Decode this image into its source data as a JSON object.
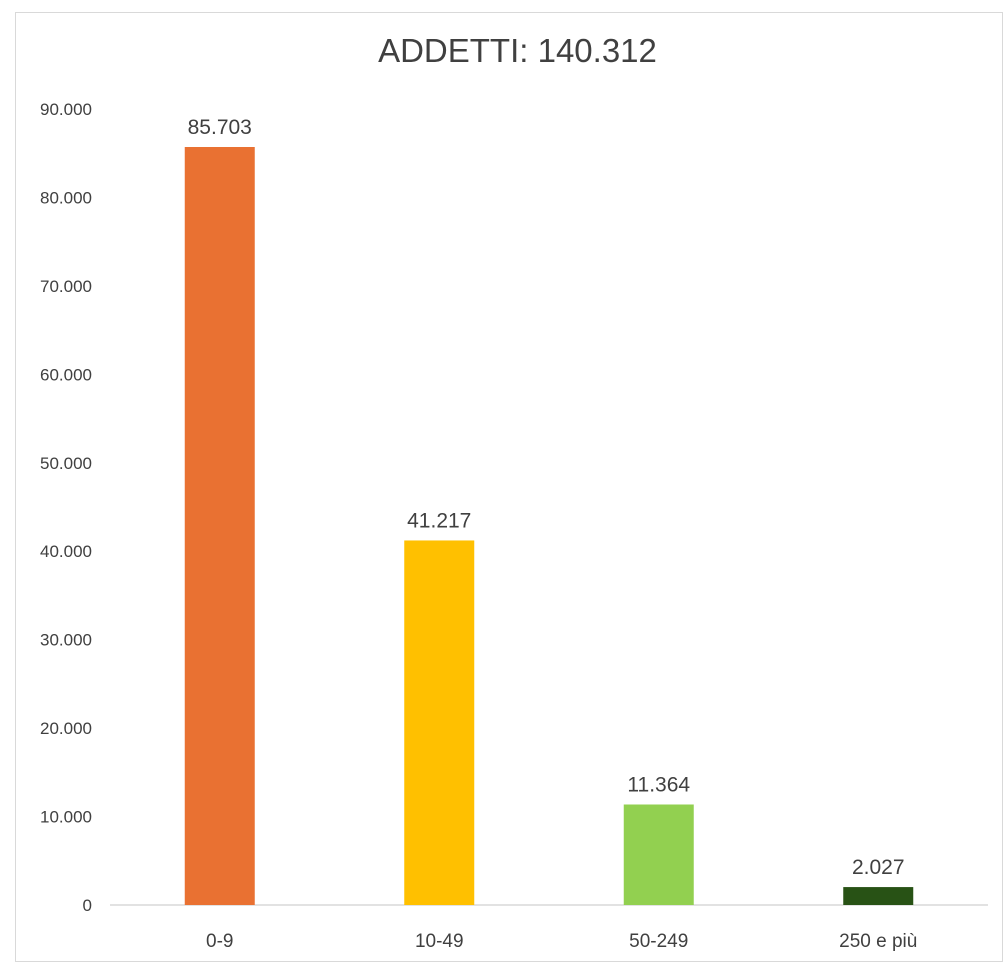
{
  "chart_data": {
    "type": "bar",
    "title": "ADDETTI: 140.312",
    "categories": [
      "0-9",
      "10-49",
      "50-249",
      "250 e più"
    ],
    "values": [
      85703,
      41217,
      11364,
      2027
    ],
    "value_labels": [
      "85.703",
      "41.217",
      "11.364",
      "2.027"
    ],
    "colors": [
      "#e97132",
      "#ffc000",
      "#92d050",
      "#285215"
    ],
    "ylim": [
      0,
      90000
    ],
    "yticks": [
      0,
      10000,
      20000,
      30000,
      40000,
      50000,
      60000,
      70000,
      80000,
      90000
    ],
    "ytick_labels": [
      "0",
      "10.000",
      "20.000",
      "30.000",
      "40.000",
      "50.000",
      "60.000",
      "70.000",
      "80.000",
      "90.000"
    ],
    "xlabel": "",
    "ylabel": "",
    "grid": false,
    "legend": "none"
  }
}
